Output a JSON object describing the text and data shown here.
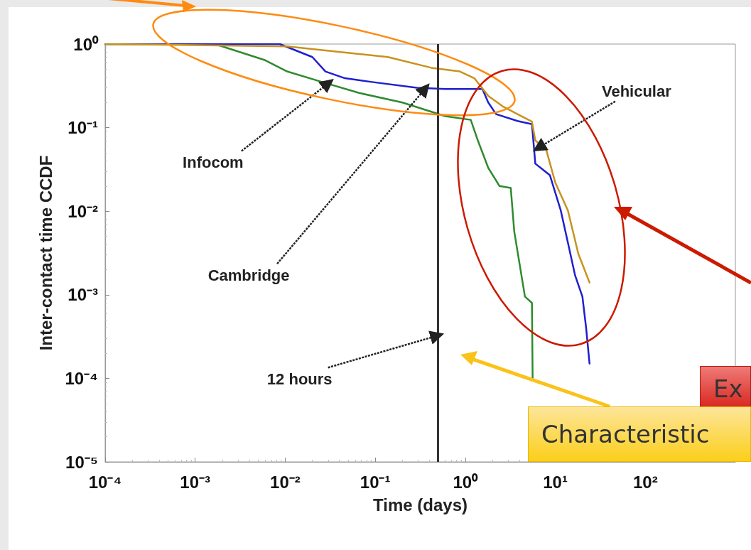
{
  "chart_data": {
    "type": "line",
    "xlabel": "Time (days)",
    "ylabel": "Inter-contact time CCDF",
    "log": "xy",
    "marker": "none",
    "line_style": "solid",
    "xlim": [
      0.0001,
      1000
    ],
    "ylim": [
      1e-05,
      1
    ],
    "xticks": [
      {
        "value": 0.0001,
        "label": "10⁻⁴"
      },
      {
        "value": 0.001,
        "label": "10⁻³"
      },
      {
        "value": 0.01,
        "label": "10⁻²"
      },
      {
        "value": 0.1,
        "label": "10⁻¹"
      },
      {
        "value": 1,
        "label": "10⁰"
      },
      {
        "value": 10,
        "label": "10¹"
      },
      {
        "value": 100,
        "label": "10²"
      },
      {
        "value": 1000,
        "label": null
      }
    ],
    "yticks": [
      {
        "value": 1e-05,
        "label": "10⁻⁵"
      },
      {
        "value": 0.0001,
        "label": "10⁻⁴"
      },
      {
        "value": 0.001,
        "label": "10⁻³"
      },
      {
        "value": 0.01,
        "label": "10⁻²"
      },
      {
        "value": 0.1,
        "label": "10⁻¹"
      },
      {
        "value": 1,
        "label": "10⁰"
      }
    ],
    "series": [
      {
        "color": "#2e8b2e",
        "x": [
          0.0001,
          0.00166,
          0.006,
          0.0105,
          0.026,
          0.066,
          0.2,
          0.6,
          1.15,
          1.38,
          1.8,
          2.4,
          3.2,
          3.5,
          4.6,
          5.5,
          5.6
        ],
        "values": [
          1,
          1,
          0.64,
          0.47,
          0.35,
          0.26,
          0.2,
          0.137,
          0.124,
          0.07,
          0.033,
          0.02,
          0.019,
          0.0057,
          0.00095,
          0.0008,
          0.0001
        ]
      },
      {
        "color": "#1f1fd0",
        "x": [
          0.0001,
          0.0087,
          0.02,
          0.028,
          0.046,
          0.095,
          0.29,
          0.6,
          1.55,
          1.8,
          2.2,
          3.8,
          5.5,
          6,
          8.7,
          11.5,
          13.8,
          16.6,
          20,
          22,
          24
        ],
        "values": [
          1,
          1,
          0.7,
          0.47,
          0.39,
          0.35,
          0.3,
          0.29,
          0.29,
          0.2,
          0.145,
          0.12,
          0.11,
          0.037,
          0.027,
          0.0102,
          0.0042,
          0.0017,
          0.00095,
          0.0004,
          0.00015
        ]
      },
      {
        "color": "#c8921e",
        "x": [
          0.0001,
          0.0105,
          0.138,
          0.42,
          0.87,
          1.26,
          1.8,
          2.6,
          3.8,
          5.5,
          6,
          7.9,
          10,
          13.8,
          18,
          24
        ],
        "values": [
          1,
          0.94,
          0.7,
          0.52,
          0.47,
          0.39,
          0.24,
          0.18,
          0.145,
          0.118,
          0.07,
          0.055,
          0.022,
          0.0102,
          0.0031,
          0.0014
        ]
      }
    ],
    "ref_lines": [
      {
        "axis": "x",
        "value": 0.5,
        "color": "#333333",
        "line_style": "solid"
      }
    ],
    "annotations": [
      {
        "text": "Infocom",
        "x": 0.03,
        "y": 0.33
      },
      {
        "text": "Cambridge",
        "x": 0.35,
        "y": 0.29
      },
      {
        "text": "Vehicular",
        "x": 6.5,
        "y": 0.06
      },
      {
        "text": "12 hours",
        "x": 0.5,
        "y": 0.0003
      },
      "Ex",
      "Characteristic"
    ]
  }
}
